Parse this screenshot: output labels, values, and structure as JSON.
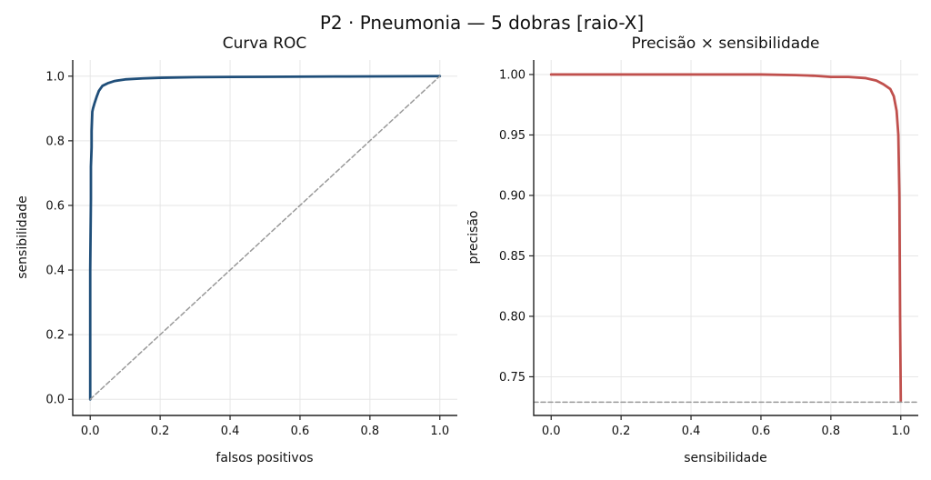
{
  "figure": {
    "suptitle": "P2 · Pneumonia — 5 dobras [raio-X]"
  },
  "chart_data": [
    {
      "type": "line",
      "title": "Curva ROC",
      "xlabel": "falsos positivos",
      "ylabel": "sensibilidade",
      "xlim": [
        -0.05,
        1.05
      ],
      "ylim": [
        -0.05,
        1.05
      ],
      "xticks": [
        "0.0",
        "0.2",
        "0.4",
        "0.6",
        "0.8",
        "1.0"
      ],
      "yticks": [
        "0.0",
        "0.2",
        "0.4",
        "0.6",
        "0.8",
        "1.0"
      ],
      "grid": true,
      "series": [
        {
          "color": "#1f4e79",
          "style": "solid",
          "x": [
            0.0,
            0.0,
            0.002,
            0.002,
            0.004,
            0.004,
            0.006,
            0.008,
            0.012,
            0.018,
            0.025,
            0.035,
            0.05,
            0.07,
            0.1,
            0.15,
            0.2,
            0.3,
            0.5,
            0.7,
            1.0
          ],
          "y": [
            0.0,
            0.4,
            0.62,
            0.72,
            0.78,
            0.83,
            0.89,
            0.9,
            0.915,
            0.935,
            0.955,
            0.97,
            0.978,
            0.985,
            0.99,
            0.993,
            0.995,
            0.997,
            0.998,
            0.999,
            1.0
          ]
        },
        {
          "color": "#999999",
          "style": "dashed",
          "x": [
            0.0,
            1.0
          ],
          "y": [
            0.0,
            1.0
          ]
        }
      ]
    },
    {
      "type": "line",
      "title": "Precisão × sensibilidade",
      "xlabel": "sensibilidade",
      "ylabel": "precisão",
      "xlim": [
        -0.05,
        1.05
      ],
      "ylim": [
        0.718,
        1.012
      ],
      "xticks": [
        "0.0",
        "0.2",
        "0.4",
        "0.6",
        "0.8",
        "1.0"
      ],
      "yticks": [
        "0.75",
        "0.80",
        "0.85",
        "0.90",
        "0.95",
        "1.00"
      ],
      "grid": true,
      "series": [
        {
          "color": "#c0504d",
          "style": "solid",
          "x": [
            0.0,
            0.3,
            0.6,
            0.7,
            0.75,
            0.8,
            0.85,
            0.9,
            0.93,
            0.95,
            0.97,
            0.98,
            0.988,
            0.993,
            0.996,
            0.998,
            1.0
          ],
          "y": [
            1.0,
            1.0,
            1.0,
            0.9995,
            0.999,
            0.998,
            0.998,
            0.997,
            0.995,
            0.992,
            0.988,
            0.982,
            0.97,
            0.95,
            0.9,
            0.8,
            0.73
          ]
        },
        {
          "color": "#999999",
          "style": "dashed",
          "x": [
            -0.05,
            1.05
          ],
          "y": [
            0.729,
            0.729
          ]
        }
      ]
    }
  ]
}
